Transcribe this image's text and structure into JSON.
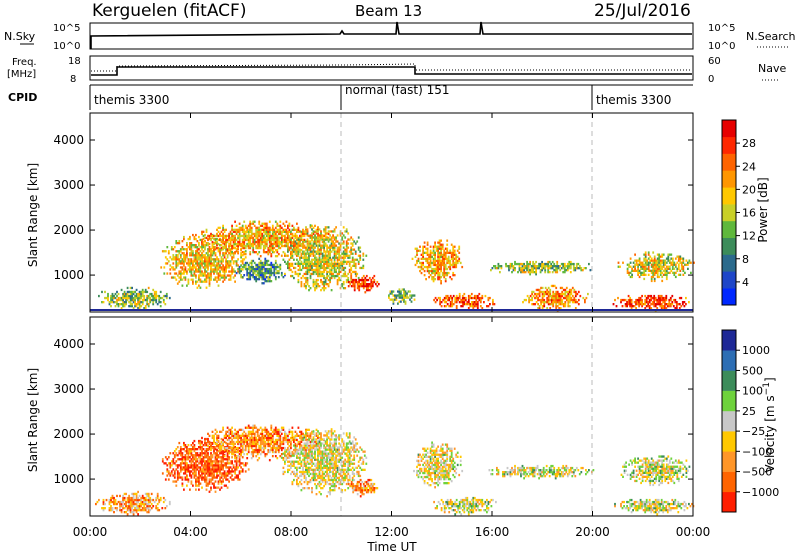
{
  "header": {
    "station": "Kerguelen (fitACF)",
    "beam": "Beam 13",
    "date": "25/Jul/2016"
  },
  "nsky_panel": {
    "left_label": "N.Sky",
    "left_ticks": [
      "10^5",
      "10^0"
    ],
    "right_label": "N.Search",
    "right_ticks": [
      "10^5",
      "10^0"
    ]
  },
  "freq_panel": {
    "left_label_1": "Freq.",
    "left_label_2": "[MHz]",
    "left_ticks": [
      "18",
      "8"
    ],
    "right_label": "Nave",
    "right_ticks": [
      "60",
      "0"
    ]
  },
  "cpid_panel": {
    "label": "CPID",
    "modes": [
      {
        "name": "themis 3300",
        "start_hour": 0,
        "end_hour": 10
      },
      {
        "name": "normal (fast) 151",
        "start_hour": 10,
        "end_hour": 20
      },
      {
        "name": "themis 3300",
        "start_hour": 20,
        "end_hour": 24
      }
    ]
  },
  "chart_data": [
    {
      "type": "heatmap",
      "title": "Power",
      "xlabel": "",
      "ylabel": "Slant Range [km]",
      "xlim": [
        0,
        24
      ],
      "ylim": [
        180,
        4600
      ],
      "yticks": [
        "1000",
        "2000",
        "3000",
        "4000"
      ],
      "colorbar": {
        "label": "Power [dB]",
        "ticks": [
          "4",
          "8",
          "12",
          "16",
          "20",
          "24",
          "28"
        ],
        "range": [
          0,
          30
        ]
      },
      "colors": [
        "#0028ff",
        "#1e46c8",
        "#2b6a8c",
        "#3c8c5a",
        "#5fb83c",
        "#c8d028",
        "#ffc800",
        "#ff9600",
        "#ff6400",
        "#ff2800",
        "#e60000"
      ],
      "features": [
        {
          "hours": [
            0.2,
            3.2
          ],
          "ranges": [
            200,
            700
          ],
          "level": 0.45
        },
        {
          "hours": [
            2.8,
            6.3
          ],
          "ranges": [
            700,
            1900
          ],
          "level": 0.6
        },
        {
          "hours": [
            4.3,
            9.5
          ],
          "ranges": [
            1400,
            2200
          ],
          "level": 0.65
        },
        {
          "hours": [
            5.8,
            7.8
          ],
          "ranges": [
            800,
            1350
          ],
          "level": 0.3
        },
        {
          "hours": [
            7.6,
            11.0
          ],
          "ranges": [
            600,
            2100
          ],
          "level": 0.55
        },
        {
          "hours": [
            10.2,
            11.5
          ],
          "ranges": [
            600,
            1000
          ],
          "level": 0.85
        },
        {
          "hours": [
            11.8,
            13.0
          ],
          "ranges": [
            300,
            700
          ],
          "level": 0.4
        },
        {
          "hours": [
            12.8,
            14.8
          ],
          "ranges": [
            800,
            1800
          ],
          "level": 0.65
        },
        {
          "hours": [
            13.6,
            16.2
          ],
          "ranges": [
            200,
            600
          ],
          "level": 0.8
        },
        {
          "hours": [
            15.8,
            20.0
          ],
          "ranges": [
            1000,
            1300
          ],
          "level": 0.45
        },
        {
          "hours": [
            17.2,
            19.8
          ],
          "ranges": [
            200,
            750
          ],
          "level": 0.7
        },
        {
          "hours": [
            20.8,
            24.0
          ],
          "ranges": [
            200,
            550
          ],
          "level": 0.85
        },
        {
          "hours": [
            21.0,
            24.0
          ],
          "ranges": [
            850,
            1500
          ],
          "level": 0.55
        }
      ]
    },
    {
      "type": "heatmap",
      "title": "Velocity",
      "xlabel": "Time UT",
      "ylabel": "Slant Range [km]",
      "xlim": [
        0,
        24
      ],
      "ylim": [
        180,
        4600
      ],
      "xticks": [
        "00:00",
        "04:00",
        "08:00",
        "12:00",
        "16:00",
        "20:00",
        "00:00"
      ],
      "yticks": [
        "1000",
        "2000",
        "3000",
        "4000"
      ],
      "colorbar": {
        "label": "Velocity [m s^-1]",
        "ticks": [
          "1000",
          "500",
          "100",
          "25",
          "−25",
          "−100",
          "−500",
          "−1000"
        ],
        "range": [
          1000,
          -1000
        ]
      },
      "colors": [
        "#1e2896",
        "#2d6eb4",
        "#3c8c5a",
        "#6ed23c",
        "#c8c8c8",
        "#ffc800",
        "#ff9628",
        "#ff6400",
        "#ff1e00"
      ],
      "features": [
        {
          "hours": [
            0.2,
            3.2
          ],
          "ranges": [
            200,
            700
          ],
          "level": 0.7
        },
        {
          "hours": [
            2.8,
            6.3
          ],
          "ranges": [
            700,
            1900
          ],
          "level": 0.85
        },
        {
          "hours": [
            4.3,
            9.5
          ],
          "ranges": [
            1400,
            2200
          ],
          "level": 0.75
        },
        {
          "hours": [
            7.6,
            11.0
          ],
          "ranges": [
            600,
            2100
          ],
          "level": 0.55
        },
        {
          "hours": [
            10.2,
            11.5
          ],
          "ranges": [
            600,
            1000
          ],
          "level": 0.75
        },
        {
          "hours": [
            12.8,
            14.8
          ],
          "ranges": [
            800,
            1800
          ],
          "level": 0.55
        },
        {
          "hours": [
            13.6,
            16.2
          ],
          "ranges": [
            200,
            600
          ],
          "level": 0.5
        },
        {
          "hours": [
            15.8,
            20.0
          ],
          "ranges": [
            1000,
            1300
          ],
          "level": 0.5
        },
        {
          "hours": [
            21.0,
            24.0
          ],
          "ranges": [
            850,
            1500
          ],
          "level": 0.5
        },
        {
          "hours": [
            20.8,
            24.0
          ],
          "ranges": [
            200,
            550
          ],
          "level": 0.5
        }
      ]
    }
  ]
}
